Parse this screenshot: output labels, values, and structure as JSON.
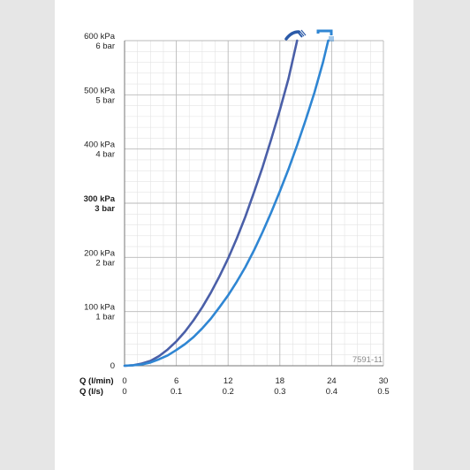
{
  "chart_data": {
    "type": "line",
    "code": "7591-11",
    "x_axes": [
      {
        "name": "Q (l/min)",
        "ticks": [
          "0",
          "6",
          "12",
          "18",
          "24",
          "30"
        ],
        "range": [
          0,
          30
        ]
      },
      {
        "name": "Q (l/s)",
        "ticks": [
          "0",
          "0.1",
          "0.2",
          "0.3",
          "0.4",
          "0.5"
        ],
        "range": [
          0,
          0.5
        ]
      }
    ],
    "y_axis": {
      "range": [
        0,
        600
      ],
      "ticks": [
        {
          "value": 0,
          "kpa": "0",
          "bar": "",
          "bold": false
        },
        {
          "value": 100,
          "kpa": "100 kPa",
          "bar": "1 bar",
          "bold": false
        },
        {
          "value": 200,
          "kpa": "200 kPa",
          "bar": "2 bar",
          "bold": false
        },
        {
          "value": 300,
          "kpa": "300 kPa",
          "bar": "3 bar",
          "bold": true
        },
        {
          "value": 400,
          "kpa": "400 kPa",
          "bar": "4 bar",
          "bold": false
        },
        {
          "value": 500,
          "kpa": "500 kPa",
          "bar": "5 bar",
          "bold": false
        },
        {
          "value": 600,
          "kpa": "600 kPa",
          "bar": "6 bar",
          "bold": false
        }
      ]
    },
    "grid": true,
    "minor_grid_divisions": {
      "x": 4,
      "y": 5
    },
    "series": [
      {
        "icon": "hand-shower-icon",
        "color": "#4a5fa8",
        "points": [
          [
            0,
            0
          ],
          [
            1,
            1
          ],
          [
            2,
            4
          ],
          [
            3,
            9
          ],
          [
            4,
            18
          ],
          [
            5,
            30
          ],
          [
            6,
            45
          ],
          [
            7,
            63
          ],
          [
            8,
            84
          ],
          [
            9,
            108
          ],
          [
            10,
            135
          ],
          [
            11,
            165
          ],
          [
            12,
            198
          ],
          [
            13,
            235
          ],
          [
            14,
            275
          ],
          [
            15,
            320
          ],
          [
            16,
            367
          ],
          [
            17,
            418
          ],
          [
            18,
            472
          ],
          [
            19,
            530
          ],
          [
            20,
            600
          ]
        ]
      },
      {
        "icon": "shower-head-icon",
        "color": "#2f86d3",
        "points": [
          [
            0,
            0
          ],
          [
            1,
            1
          ],
          [
            2,
            2.5
          ],
          [
            3,
            6
          ],
          [
            4,
            12
          ],
          [
            5,
            19
          ],
          [
            6,
            29
          ],
          [
            7,
            40
          ],
          [
            8,
            53
          ],
          [
            9,
            69
          ],
          [
            10,
            87
          ],
          [
            11,
            108
          ],
          [
            12,
            130
          ],
          [
            13,
            155
          ],
          [
            14,
            182
          ],
          [
            15,
            213
          ],
          [
            16,
            247
          ],
          [
            17,
            283
          ],
          [
            18,
            322
          ],
          [
            19,
            363
          ],
          [
            20,
            407
          ],
          [
            21,
            454
          ],
          [
            22,
            504
          ],
          [
            23,
            560
          ],
          [
            23.6,
            600
          ]
        ]
      }
    ]
  }
}
